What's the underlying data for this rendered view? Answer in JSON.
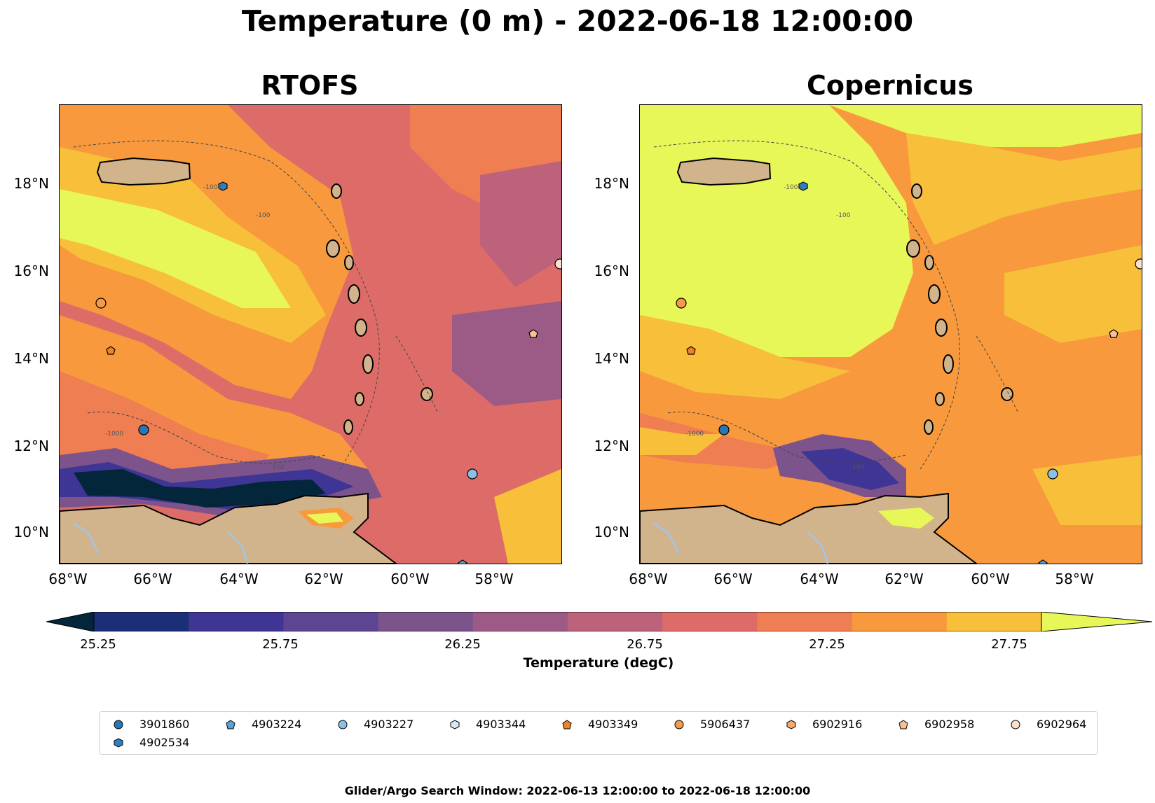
{
  "title": "Temperature (0 m) - 2022-06-18 12:00:00",
  "panels": [
    {
      "id": "rtofs",
      "title": "RTOFS"
    },
    {
      "id": "copernicus",
      "title": "Copernicus"
    }
  ],
  "axes": {
    "x_ticks": [
      "68°W",
      "66°W",
      "64°W",
      "62°W",
      "60°W",
      "58°W"
    ],
    "y_ticks": [
      "18°N",
      "16°N",
      "14°N",
      "12°N",
      "10°N"
    ]
  },
  "contour_labels": [
    "-1000",
    "-100",
    "-1000",
    "-100"
  ],
  "colorbar": {
    "title": "Temperature (degC)",
    "tick_labels": [
      "25.25",
      "25.75",
      "26.25",
      "26.75",
      "27.25",
      "27.75"
    ],
    "colors": [
      "#04263a",
      "#1b2f78",
      "#3e3594",
      "#5d4592",
      "#7d538c",
      "#9c5b86",
      "#bd627a",
      "#dd6c68",
      "#ef7e52",
      "#f7993c",
      "#f7bf3a",
      "#e8f758"
    ]
  },
  "map_colors": {
    "land": "#d2b48c",
    "water": "#a6c4de",
    "coast": "#000000"
  },
  "legend": {
    "items": [
      {
        "id": "3901860",
        "marker": "circle",
        "color": "#2677b5"
      },
      {
        "id": "4903224",
        "marker": "pentagon",
        "color": "#5ba3d4"
      },
      {
        "id": "4903227",
        "marker": "circle",
        "color": "#8bbfe6"
      },
      {
        "id": "4903344",
        "marker": "hexagon",
        "color": "#d6e8f5"
      },
      {
        "id": "4903349",
        "marker": "pentagon",
        "color": "#f08224"
      },
      {
        "id": "5906437",
        "marker": "circle",
        "color": "#f59a4a"
      },
      {
        "id": "6902916",
        "marker": "hexagon",
        "color": "#f7aa6e"
      },
      {
        "id": "6902958",
        "marker": "pentagon",
        "color": "#f8bf92"
      },
      {
        "id": "6902964",
        "marker": "circle",
        "color": "#fbe0cc"
      },
      {
        "id": "4902534",
        "marker": "hexagon",
        "color": "#2f7fbf"
      }
    ]
  },
  "footer": "Glider/Argo Search Window: 2022-06-13 12:00:00 to 2022-06-18 12:00:00"
}
